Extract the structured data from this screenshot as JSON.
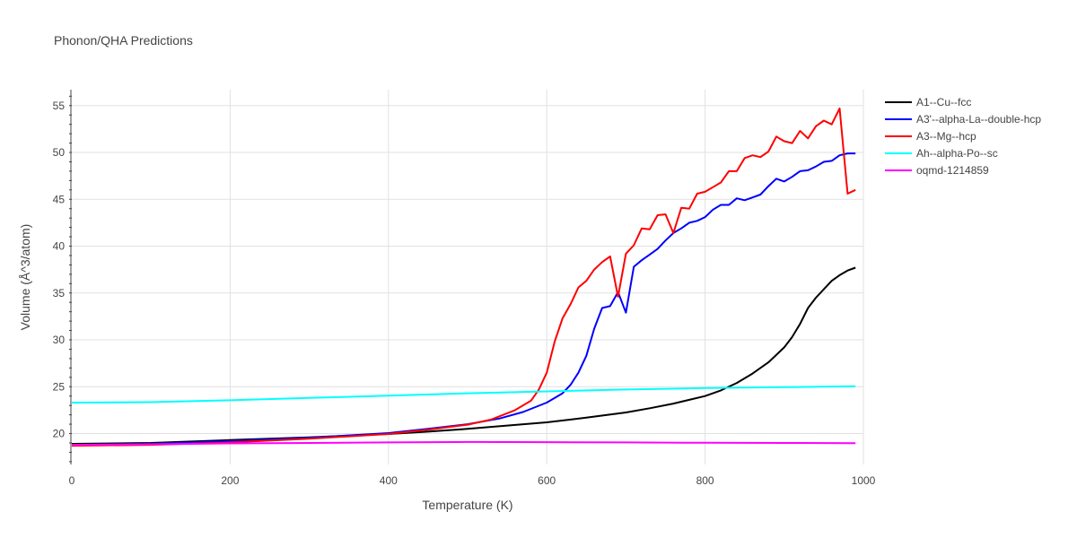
{
  "chart_data": {
    "type": "line",
    "title": "Phonon/QHA Predictions",
    "xlabel": "Temperature (K)",
    "ylabel": "Volume (Å^3/atom)",
    "xlim": [
      0,
      1000
    ],
    "ylim": [
      16.7,
      56.7
    ],
    "x_ticks": [
      0,
      200,
      400,
      600,
      800,
      1000
    ],
    "y_ticks": [
      20,
      25,
      30,
      35,
      40,
      45,
      50,
      55
    ],
    "grid": true,
    "legend_position": "top-right",
    "series": [
      {
        "name": "A1--Cu--fcc",
        "color": "#000000",
        "x": [
          0,
          100,
          200,
          300,
          400,
          450,
          500,
          550,
          600,
          650,
          700,
          730,
          760,
          780,
          800,
          820,
          840,
          860,
          880,
          900,
          910,
          920,
          930,
          940,
          950,
          960,
          970,
          980,
          990
        ],
        "y": [
          18.9,
          19.0,
          19.3,
          19.6,
          19.95,
          20.2,
          20.5,
          20.85,
          21.2,
          21.7,
          22.25,
          22.7,
          23.2,
          23.6,
          24.0,
          24.6,
          25.4,
          26.4,
          27.6,
          29.2,
          30.3,
          31.7,
          33.4,
          34.5,
          35.4,
          36.3,
          36.9,
          37.4,
          37.7
        ]
      },
      {
        "name": "A3'--alpha-La--double-hcp",
        "color": "#0000ff",
        "x": [
          0,
          100,
          200,
          300,
          400,
          450,
          500,
          540,
          570,
          600,
          620,
          630,
          640,
          650,
          660,
          670,
          680,
          690,
          700,
          710,
          720,
          730,
          740,
          750,
          760,
          770,
          780,
          790,
          800,
          810,
          820,
          830,
          840,
          850,
          860,
          870,
          880,
          890,
          900,
          910,
          920,
          930,
          940,
          950,
          960,
          970,
          980,
          990
        ],
        "y": [
          18.8,
          18.9,
          19.2,
          19.55,
          20.05,
          20.5,
          21.0,
          21.6,
          22.3,
          23.3,
          24.3,
          25.2,
          26.5,
          28.3,
          31.2,
          33.4,
          33.6,
          35.1,
          32.9,
          37.8,
          38.5,
          39.1,
          39.7,
          40.6,
          41.4,
          41.9,
          42.5,
          42.7,
          43.1,
          43.9,
          44.4,
          44.4,
          45.1,
          44.9,
          45.2,
          45.5,
          46.4,
          47.2,
          46.9,
          47.4,
          48.0,
          48.1,
          48.5,
          49.0,
          49.1,
          49.7,
          49.9,
          49.9
        ]
      },
      {
        "name": "A3--Mg--hcp",
        "color": "#ff0000",
        "x": [
          0,
          100,
          200,
          300,
          400,
          450,
          500,
          530,
          560,
          580,
          590,
          600,
          610,
          620,
          630,
          640,
          650,
          660,
          670,
          680,
          690,
          700,
          710,
          720,
          730,
          740,
          750,
          760,
          770,
          780,
          790,
          800,
          810,
          820,
          830,
          840,
          850,
          860,
          870,
          880,
          890,
          900,
          910,
          920,
          930,
          940,
          950,
          960,
          970,
          980,
          990
        ],
        "y": [
          18.7,
          18.8,
          19.05,
          19.45,
          19.95,
          20.4,
          20.95,
          21.5,
          22.5,
          23.5,
          24.7,
          26.5,
          29.8,
          32.3,
          33.8,
          35.6,
          36.3,
          37.5,
          38.3,
          38.9,
          34.6,
          39.2,
          40.1,
          41.9,
          41.8,
          43.3,
          43.4,
          41.4,
          44.1,
          44.0,
          45.6,
          45.8,
          46.3,
          46.8,
          48.0,
          48.0,
          49.4,
          49.7,
          49.5,
          50.1,
          51.7,
          51.2,
          51.0,
          52.3,
          51.5,
          52.8,
          53.4,
          53.0,
          54.7,
          45.6,
          46.0
        ]
      },
      {
        "name": "Ah--alpha-Po--sc",
        "color": "#00ffff",
        "x": [
          0,
          100,
          200,
          300,
          400,
          500,
          600,
          700,
          800,
          900,
          990
        ],
        "y": [
          23.3,
          23.35,
          23.55,
          23.8,
          24.05,
          24.3,
          24.5,
          24.7,
          24.85,
          24.95,
          25.05
        ]
      },
      {
        "name": "oqmd-1214859",
        "color": "#ff00ff",
        "x": [
          0,
          100,
          200,
          300,
          400,
          500,
          600,
          700,
          800,
          900,
          990
        ],
        "y": [
          18.8,
          18.85,
          18.95,
          19.0,
          19.05,
          19.1,
          19.08,
          19.05,
          19.02,
          19.0,
          18.98
        ]
      }
    ]
  }
}
